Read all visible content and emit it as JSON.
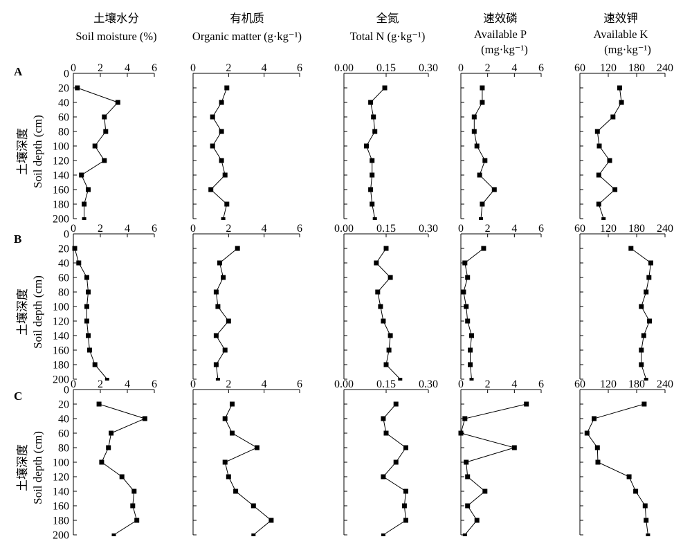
{
  "columns": [
    {
      "title_cn": "土壤水分",
      "title_en": "Soil moisture (%)",
      "unit": ""
    },
    {
      "title_cn": "有机质",
      "title_en": "Organic matter (g·kg⁻¹)",
      "unit": ""
    },
    {
      "title_cn": "全氮",
      "title_en": "Total N (g·kg⁻¹)",
      "unit": ""
    },
    {
      "title_cn": "速效磷",
      "title_en": "Available P",
      "unit": "(mg·kg⁻¹)"
    },
    {
      "title_cn": "速效钾",
      "title_en": "Available K",
      "unit": "(mg·kg⁻¹)"
    }
  ],
  "rows": [
    {
      "label": "A",
      "ylabel_cn": "土壤深度",
      "ylabel_en": "Soil depth (cm)"
    },
    {
      "label": "B",
      "ylabel_cn": "土壤深度",
      "ylabel_en": "Soil depth (cm)"
    },
    {
      "label": "C",
      "ylabel_cn": "土壤深度",
      "ylabel_en": "Soil depth (cm)"
    }
  ],
  "chart_data": {
    "type": "line",
    "orientation": "vertical depth profile (depth on inverted y-axis, value on top x-axis)",
    "ylabel": "土壤深度 Soil depth (cm)",
    "ylim": [
      0,
      200
    ],
    "y_ticks": [
      0,
      20,
      40,
      60,
      80,
      100,
      120,
      140,
      160,
      180,
      200
    ],
    "depths": [
      0,
      20,
      40,
      60,
      80,
      100,
      120,
      140,
      160,
      180,
      200
    ],
    "marker_depths": [
      20,
      40,
      60,
      80,
      100,
      120,
      140,
      160,
      180
    ],
    "panels": [
      {
        "row": "A",
        "col": 0,
        "xlim": [
          0,
          6
        ],
        "x_ticks": [
          "0",
          "2",
          "4",
          "6"
        ],
        "values": [
          0.3,
          3.3,
          2.3,
          2.4,
          1.6,
          2.3,
          0.6,
          1.1,
          0.8,
          0.8
        ]
      },
      {
        "row": "A",
        "col": 1,
        "xlim": [
          0,
          6
        ],
        "x_ticks": [
          "0",
          "2",
          "4",
          "6"
        ],
        "values": [
          1.9,
          1.6,
          1.1,
          1.6,
          1.1,
          1.6,
          1.8,
          1.0,
          1.9,
          1.7
        ]
      },
      {
        "row": "A",
        "col": 2,
        "xlim": [
          0,
          0.3
        ],
        "x_ticks": [
          "0.00",
          "0.15",
          "0.30"
        ],
        "values": [
          0.145,
          0.095,
          0.105,
          0.11,
          0.08,
          0.1,
          0.1,
          0.095,
          0.1,
          0.11
        ]
      },
      {
        "row": "A",
        "col": 3,
        "xlim": [
          0,
          6
        ],
        "x_ticks": [
          "0",
          "2",
          "4",
          "6"
        ],
        "values": [
          1.6,
          1.6,
          1.0,
          1.0,
          1.2,
          1.8,
          1.4,
          2.5,
          1.6,
          1.5
        ]
      },
      {
        "row": "A",
        "col": 4,
        "xlim": [
          60,
          240
        ],
        "x_ticks": [
          "60",
          "120",
          "180",
          "240"
        ],
        "values": [
          144,
          148,
          130,
          97,
          101,
          123,
          100,
          134,
          100,
          110
        ]
      },
      {
        "row": "B",
        "col": 0,
        "xlim": [
          0,
          6
        ],
        "x_ticks": [
          "0",
          "2",
          "4",
          "6"
        ],
        "values": [
          0.1,
          0.4,
          1.0,
          1.1,
          1.0,
          1.0,
          1.1,
          1.2,
          1.6,
          2.5
        ]
      },
      {
        "row": "B",
        "col": 1,
        "xlim": [
          0,
          6
        ],
        "x_ticks": [
          "0",
          "2",
          "4",
          "6"
        ],
        "values": [
          2.5,
          1.5,
          1.7,
          1.3,
          1.4,
          2.0,
          1.3,
          1.8,
          1.3,
          1.4
        ]
      },
      {
        "row": "B",
        "col": 2,
        "xlim": [
          0,
          0.3
        ],
        "x_ticks": [
          "0.00",
          "0.15",
          "0.30"
        ],
        "values": [
          0.15,
          0.115,
          0.165,
          0.12,
          0.13,
          0.14,
          0.165,
          0.16,
          0.15,
          0.2
        ]
      },
      {
        "row": "B",
        "col": 3,
        "xlim": [
          0,
          6
        ],
        "x_ticks": [
          "0",
          "2",
          "4",
          "6"
        ],
        "values": [
          1.7,
          0.3,
          0.5,
          0.2,
          0.4,
          0.5,
          0.8,
          0.7,
          0.7,
          0.8
        ]
      },
      {
        "row": "B",
        "col": 4,
        "xlim": [
          60,
          240
        ],
        "x_ticks": [
          "60",
          "120",
          "180",
          "240"
        ],
        "values": [
          168,
          210,
          206,
          200,
          190,
          207,
          195,
          190,
          190,
          200
        ]
      },
      {
        "row": "C",
        "col": 0,
        "xlim": [
          0,
          6
        ],
        "x_ticks": [
          "0",
          "2",
          "4",
          "6"
        ],
        "values": [
          1.9,
          5.3,
          2.8,
          2.6,
          2.1,
          3.6,
          4.5,
          4.4,
          4.7,
          3.0
        ]
      },
      {
        "row": "C",
        "col": 1,
        "xlim": [
          0,
          6
        ],
        "x_ticks": [
          "0",
          "2",
          "4",
          "6"
        ],
        "values": [
          2.2,
          1.8,
          2.2,
          3.6,
          1.8,
          2.0,
          2.4,
          3.4,
          4.4,
          3.4
        ]
      },
      {
        "row": "C",
        "col": 2,
        "xlim": [
          0,
          0.3
        ],
        "x_ticks": [
          "0.00",
          "0.15",
          "0.30"
        ],
        "values": [
          0.185,
          0.14,
          0.15,
          0.22,
          0.185,
          0.14,
          0.22,
          0.215,
          0.22,
          0.14
        ]
      },
      {
        "row": "C",
        "col": 3,
        "xlim": [
          0,
          6
        ],
        "x_ticks": [
          "0",
          "2",
          "4",
          "6"
        ],
        "values": [
          4.9,
          0.3,
          0.0,
          4.0,
          0.4,
          0.5,
          1.8,
          0.5,
          1.2,
          0.3
        ]
      },
      {
        "row": "C",
        "col": 4,
        "xlim": [
          60,
          240
        ],
        "x_ticks": [
          "60",
          "120",
          "180",
          "240"
        ],
        "values": [
          196,
          90,
          75,
          97,
          98,
          164,
          178,
          198,
          200,
          204
        ]
      }
    ]
  }
}
